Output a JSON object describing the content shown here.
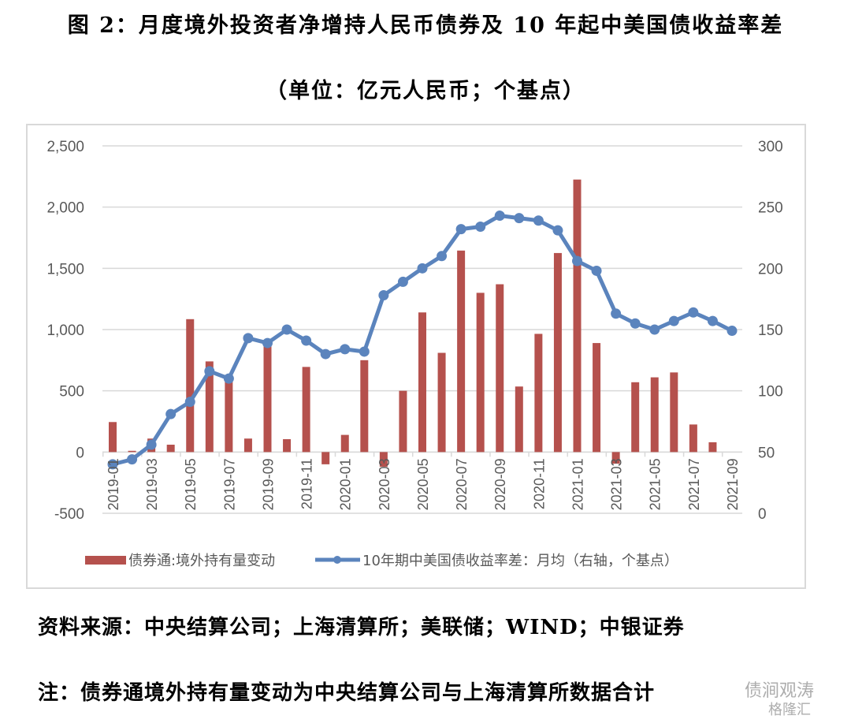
{
  "title_line1": "图 2：月度境外投资者净增持人民币债券及 10 年起中美国债收益率差",
  "title_line2": "（单位：亿元人民币；个基点）",
  "source": "资料来源：中央结算公司；上海清算所；美联储；WIND；中银证券",
  "note": "注：债券通境外持有量变动为中央结算公司与上海清算所数据合计",
  "watermark": [
    "债涧观涛",
    "格隆汇"
  ],
  "chart_data": {
    "type": "bar+line",
    "categories": [
      "2019-01",
      "2019-02",
      "2019-03",
      "2019-04",
      "2019-05",
      "2019-06",
      "2019-07",
      "2019-08",
      "2019-09",
      "2019-10",
      "2019-11",
      "2019-12",
      "2020-01",
      "2020-02",
      "2020-03",
      "2020-04",
      "2020-05",
      "2020-06",
      "2020-07",
      "2020-08",
      "2020-09",
      "2020-10",
      "2020-11",
      "2020-12",
      "2021-01",
      "2021-02",
      "2021-03",
      "2021-04",
      "2021-05",
      "2021-06",
      "2021-07",
      "2021-08",
      "2021-09"
    ],
    "x_tick_labels": [
      "2019-01",
      "2019-03",
      "2019-05",
      "2019-07",
      "2019-09",
      "2019-11",
      "2020-01",
      "2020-03",
      "2020-05",
      "2020-07",
      "2020-09",
      "2020-11",
      "2021-01",
      "2021-03",
      "2021-05",
      "2021-07",
      "2021-09"
    ],
    "y_left": {
      "range": [
        -500,
        2500
      ],
      "ticks": [
        "-500",
        "0",
        "500",
        "1,000",
        "1,500",
        "2,000",
        "2,500"
      ]
    },
    "y_right": {
      "range": [
        0,
        300
      ],
      "ticks": [
        "0",
        "50",
        "100",
        "150",
        "200",
        "250",
        "300"
      ]
    },
    "grid": true,
    "legend_position": "bottom",
    "series": [
      {
        "name": "债券通:境外持有量变动",
        "type": "bar",
        "axis": "left",
        "color": "#b5514d",
        "values": [
          245,
          10,
          110,
          60,
          1085,
          740,
          620,
          110,
          880,
          105,
          695,
          -100,
          140,
          750,
          -120,
          500,
          1140,
          810,
          1645,
          1300,
          1370,
          535,
          965,
          1625,
          2225,
          890,
          -95,
          570,
          610,
          650,
          225,
          80,
          0
        ]
      },
      {
        "name": "10年期中美国债收益率差：月均（右轴，个基点）",
        "type": "line",
        "axis": "right",
        "color": "#5b84bd",
        "values": [
          40,
          44,
          56,
          81,
          91,
          116,
          110,
          143,
          139,
          150,
          141,
          130,
          134,
          132,
          178,
          189,
          200,
          210,
          232,
          234,
          243,
          241,
          239,
          231,
          206,
          198,
          163,
          155,
          150,
          157,
          164,
          157,
          149
        ]
      }
    ]
  }
}
